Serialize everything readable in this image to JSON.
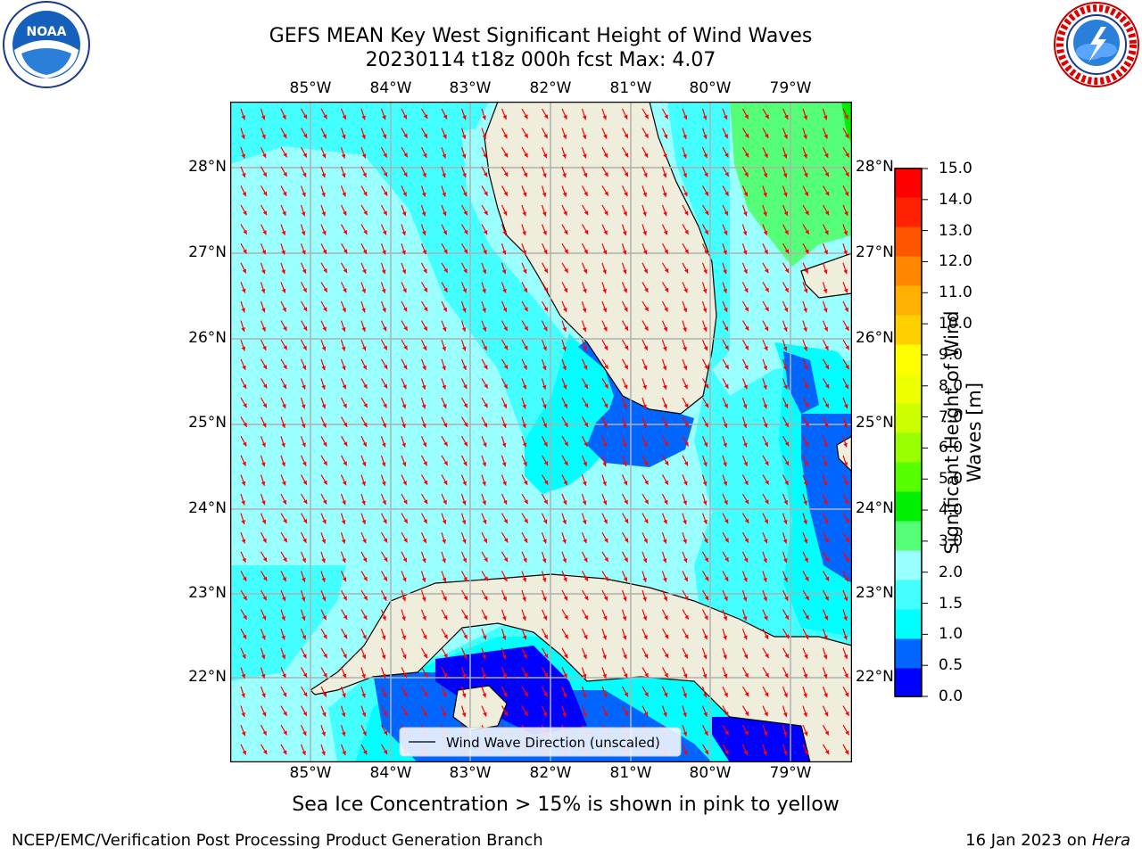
{
  "header": {
    "title_line1": "GEFS MEAN Key West Significant Height of Wind Waves",
    "title_line2": "20230114 t18z 000h fcst   Max: 4.07"
  },
  "logos": {
    "left_text": "NOAA",
    "left_ring": "NATIONAL OCEANIC AND ATMOSPHERIC ADMINISTRATION · U.S. DEPARTMENT OF COMMERCE",
    "right_ring": "NATIONAL WEATHER SERVICE"
  },
  "map": {
    "lon_labels": [
      "85°W",
      "84°W",
      "83°W",
      "82°W",
      "81°W",
      "80°W",
      "79°W"
    ],
    "lat_labels": [
      "28°N",
      "27°N",
      "26°N",
      "25°N",
      "24°N",
      "23°N",
      "22°N"
    ],
    "legend_label": "Wind Wave Direction (unscaled)",
    "colors": {
      "land": "#efeedc",
      "arrow": "#ff0000",
      "coast": "#000000",
      "grid": "#b0b0b0"
    }
  },
  "colorbar": {
    "title": "Significant Height of Wind Waves [m]",
    "ticks": [
      "15.0",
      "14.0",
      "13.0",
      "12.0",
      "11.0",
      "10.0",
      "9.0",
      "8.0",
      "7.0",
      "6.0",
      "5.0",
      "4.0",
      "3.0",
      "2.0",
      "1.5",
      "1.0",
      "0.5",
      "0.0"
    ],
    "colors": [
      "#0000ff",
      "#0066ff",
      "#00ffff",
      "#44ffff",
      "#99ffff",
      "#55ff77",
      "#00ee00",
      "#55ff00",
      "#99ff00",
      "#ccff00",
      "#eeff00",
      "#ffff00",
      "#ffd000",
      "#ffb000",
      "#ff8800",
      "#ff5500",
      "#ff2200",
      "#ff0000"
    ]
  },
  "note": "Sea Ice Concentration > 15% is shown in pink to yellow",
  "footer": {
    "left": "NCEP/EMC/Verification Post Processing Product Generation Branch",
    "date": "16 Jan 2023 on ",
    "machine": "Hera"
  }
}
